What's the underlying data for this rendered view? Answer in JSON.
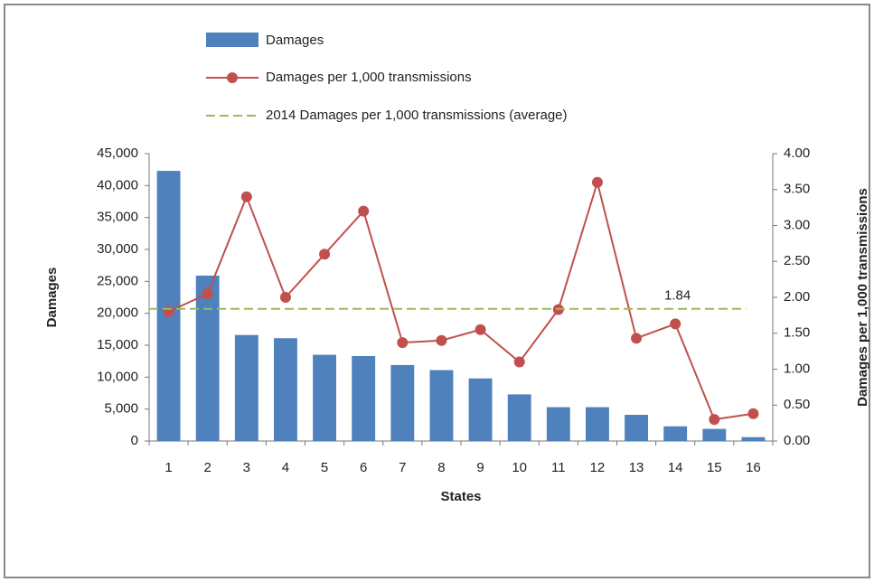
{
  "chart_data": {
    "type": "bar-line",
    "x_label": "States",
    "y_label": "Damages",
    "y2_label": "Damages per 1,000 transmissions",
    "categories": [
      "1",
      "2",
      "3",
      "4",
      "5",
      "6",
      "7",
      "8",
      "9",
      "10",
      "11",
      "12",
      "13",
      "14",
      "15",
      "16"
    ],
    "series": [
      {
        "name": "Damages",
        "type": "bar",
        "color": "#4f81bd",
        "values": [
          42300,
          25900,
          16600,
          16100,
          13500,
          13300,
          11900,
          11100,
          9800,
          7300,
          5300,
          5300,
          4100,
          2300,
          1900,
          600
        ]
      },
      {
        "name": "Damages per 1,000 transmissions",
        "type": "line",
        "axis": "y2",
        "color": "#c0504d",
        "values": [
          1.8,
          2.05,
          3.4,
          2.0,
          2.6,
          3.2,
          1.37,
          1.4,
          1.55,
          1.1,
          1.83,
          3.6,
          1.43,
          1.63,
          0.3,
          0.38
        ]
      }
    ],
    "average": {
      "name": "2014 Damages per 1,000 transmissions (average)",
      "value": 1.84,
      "color": "#9bbb59",
      "axis": "y2"
    },
    "ylim": [
      0,
      45000
    ],
    "yticks": [
      0,
      {
        "value": 5000,
        "label": "5,000"
      },
      {
        "value": 10000,
        "label": "10,000"
      },
      {
        "value": 15000,
        "label": "15,000"
      },
      {
        "value": 20000,
        "label": "20,000"
      },
      {
        "value": 25000,
        "label": "25,000"
      },
      {
        "value": 30000,
        "label": "30,000"
      },
      {
        "value": 35000,
        "label": "35,000"
      },
      {
        "value": 40000,
        "label": "40,000"
      },
      {
        "value": 45000,
        "label": "45,000"
      }
    ],
    "y2lim": [
      0,
      4
    ],
    "y2ticks": [
      {
        "value": 0,
        "label": "0.00"
      },
      {
        "value": 0.5,
        "label": "0.50"
      },
      {
        "value": 1,
        "label": "1.00"
      },
      {
        "value": 1.5,
        "label": "1.50"
      },
      {
        "value": 2,
        "label": "2.00"
      },
      {
        "value": 2.5,
        "label": "2.50"
      },
      {
        "value": 3,
        "label": "3.00"
      },
      {
        "value": 3.5,
        "label": "3.50"
      },
      {
        "value": 4,
        "label": "4.00"
      }
    ],
    "legend": "top"
  }
}
